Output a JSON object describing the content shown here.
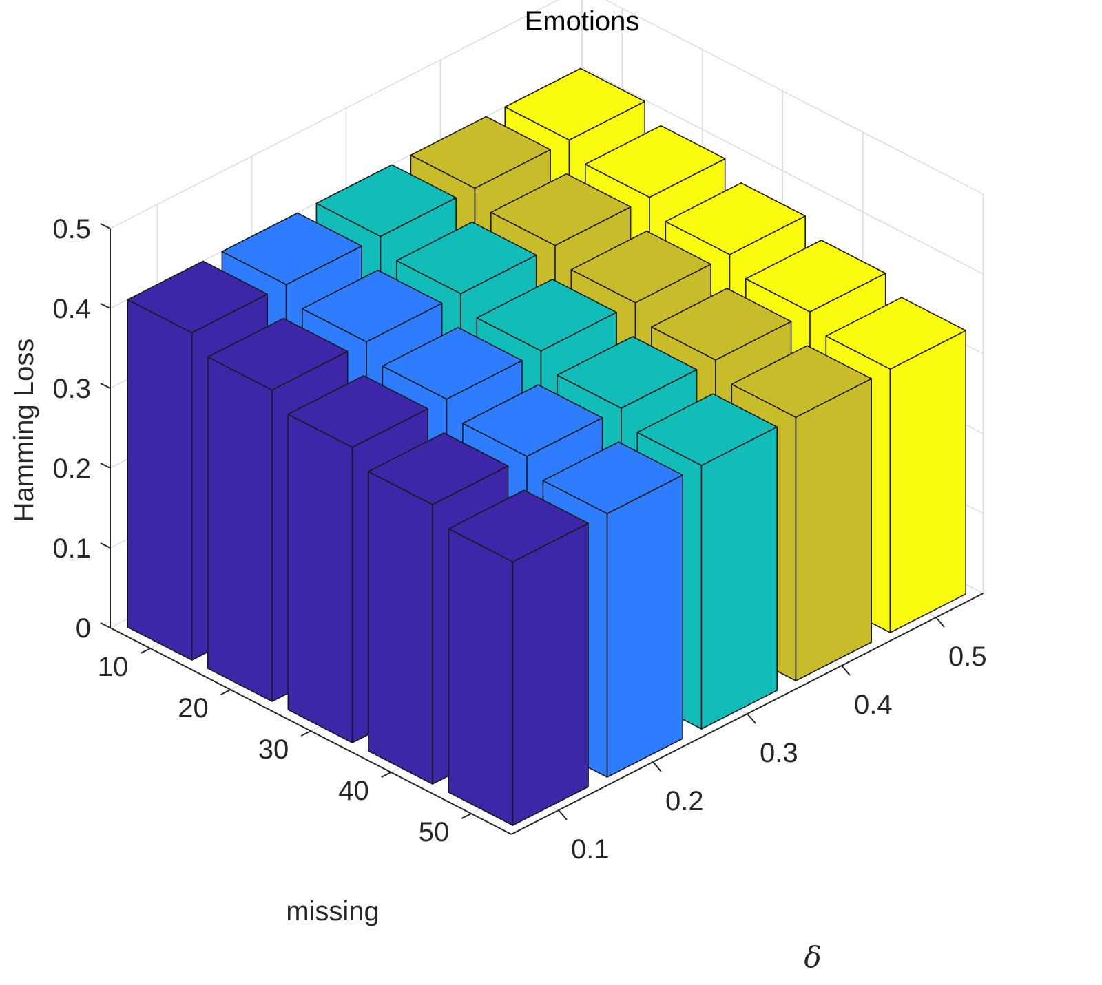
{
  "chart_data": {
    "type": "bar3d",
    "title": "Emotions",
    "zlabel": "Hamming Loss",
    "xlabel": "missing",
    "ylabel": "δ",
    "zlim": [
      0,
      0.5
    ],
    "z_ticks": [
      "0",
      "0.1",
      "0.2",
      "0.3",
      "0.4",
      "0.5"
    ],
    "missing_categories": [
      "10",
      "20",
      "30",
      "40",
      "50"
    ],
    "delta_categories": [
      "0.1",
      "0.2",
      "0.3",
      "0.4",
      "0.5"
    ],
    "series": [
      {
        "delta": "0.1",
        "color": "#3e26a8",
        "values": [
          0.41,
          0.39,
          0.37,
          0.35,
          0.33
        ]
      },
      {
        "delta": "0.2",
        "color": "#2e7cff",
        "values": [
          0.41,
          0.39,
          0.37,
          0.35,
          0.33
        ]
      },
      {
        "delta": "0.3",
        "color": "#12bdb9",
        "values": [
          0.41,
          0.39,
          0.37,
          0.35,
          0.33
        ]
      },
      {
        "delta": "0.4",
        "color": "#c8bc2a",
        "values": [
          0.41,
          0.39,
          0.37,
          0.35,
          0.33
        ]
      },
      {
        "delta": "0.5",
        "color": "#fafa0e",
        "values": [
          0.41,
          0.39,
          0.37,
          0.35,
          0.33
        ]
      }
    ],
    "grid": true
  }
}
